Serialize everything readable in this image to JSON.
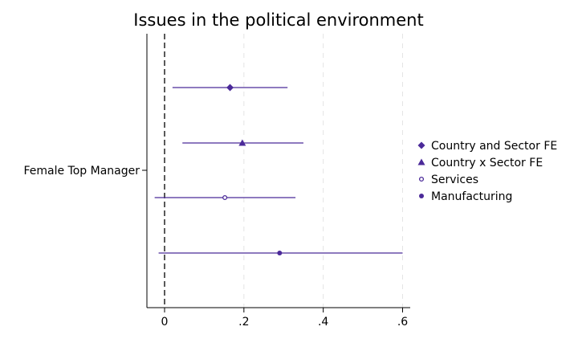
{
  "colors": {
    "series": "#4b2a99",
    "axis": "#000000",
    "grid": "#e4e4e4",
    "ref_line": "#000000"
  },
  "chart_data": {
    "type": "coefficient_plot",
    "title": "Issues in the political environment",
    "orientation": "horizontal",
    "y_category": "Female Top Manager",
    "xlim": [
      -0.045,
      0.62
    ],
    "x_ticks": [
      0,
      0.2,
      0.4,
      0.6
    ],
    "x_tick_labels": [
      "0",
      ".2",
      ".4",
      ".6"
    ],
    "reference_line": 0,
    "grid": "vertical dashed",
    "legend_position": "right",
    "series": [
      {
        "name": "Country and Sector FE",
        "marker": "diamond-icon",
        "estimate": 0.165,
        "ci": [
          0.02,
          0.31
        ]
      },
      {
        "name": "Country x Sector FE",
        "marker": "triangle-icon",
        "estimate": 0.196,
        "ci": [
          0.045,
          0.35
        ]
      },
      {
        "name": "Services",
        "marker": "hollow-circle-icon",
        "estimate": 0.152,
        "ci": [
          -0.025,
          0.33
        ]
      },
      {
        "name": "Manufacturing",
        "marker": "filled-circle-icon",
        "estimate": 0.29,
        "ci": [
          -0.015,
          0.6
        ]
      }
    ]
  }
}
